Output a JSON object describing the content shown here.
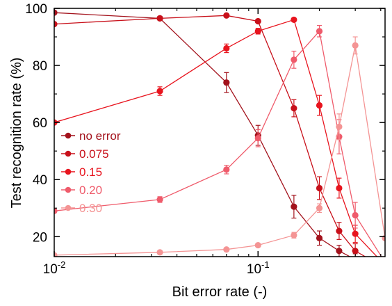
{
  "chart_data": {
    "type": "line",
    "title": "",
    "xlabel": "Bit error rate (-)",
    "ylabel": "Test recognition rate (%)",
    "xscale": "log",
    "xlim": [
      0.01,
      0.42
    ],
    "ylim": [
      13,
      100
    ],
    "xticks": [
      {
        "value": 0.01,
        "base": "10",
        "exp": "-2"
      },
      {
        "value": 0.1,
        "base": "10",
        "exp": "-1"
      }
    ],
    "yticks": [
      20,
      40,
      60,
      80,
      100
    ],
    "grid": false,
    "legend_position": "left",
    "x": [
      0.01,
      0.033,
      0.07,
      0.1,
      0.15,
      0.2,
      0.25,
      0.3,
      0.42
    ],
    "series": [
      {
        "name": "no error",
        "color": "#a3121c",
        "values": [
          98.5,
          96.5,
          74,
          55.5,
          30.5,
          19.5,
          15,
          12,
          8
        ],
        "errors": [
          0,
          0,
          3.5,
          3.5,
          4,
          2.5,
          2,
          2,
          0
        ]
      },
      {
        "name": "0.075",
        "color": "#c8101a",
        "values": [
          94.5,
          96.5,
          97.5,
          95.5,
          65,
          37,
          22,
          15,
          9
        ],
        "errors": [
          0,
          0,
          0,
          0,
          3,
          4,
          3,
          2.5,
          0
        ]
      },
      {
        "name": "0.15",
        "color": "#e8141e",
        "values": [
          60,
          71,
          86,
          92,
          96,
          66,
          37,
          21,
          10
        ],
        "errors": [
          0,
          1.5,
          1.5,
          1,
          0,
          3.5,
          3.5,
          3,
          0
        ]
      },
      {
        "name": "0.20",
        "color": "#ef5b6b",
        "values": [
          29,
          33,
          43.5,
          54.5,
          82,
          92,
          55,
          27.5,
          11
        ],
        "errors": [
          0,
          1,
          1.5,
          3,
          3,
          2,
          6,
          4.5,
          0
        ]
      },
      {
        "name": "0.30",
        "color": "#f49494",
        "values": [
          13.5,
          14.5,
          15.5,
          17,
          20.5,
          30,
          58.5,
          87,
          19.5
        ],
        "errors": [
          0,
          0,
          0,
          0,
          1,
          1.5,
          4.5,
          3,
          0
        ]
      }
    ]
  }
}
